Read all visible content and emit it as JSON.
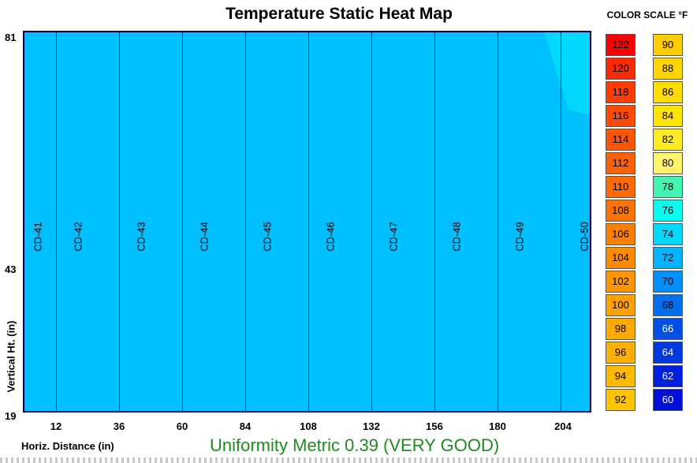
{
  "title": "Temperature Static Heat Map",
  "color_scale": {
    "title": "COLOR SCALE °F",
    "left_column": [
      {
        "value": "122",
        "color": "#FF0000",
        "text_color": "#000000"
      },
      {
        "value": "120",
        "color": "#FF2A00",
        "text_color": "#000000"
      },
      {
        "value": "118",
        "color": "#FF3C00",
        "text_color": "#000000"
      },
      {
        "value": "116",
        "color": "#FF4A00",
        "text_color": "#000000"
      },
      {
        "value": "114",
        "color": "#FF5500",
        "text_color": "#000000"
      },
      {
        "value": "112",
        "color": "#FF6000",
        "text_color": "#000000"
      },
      {
        "value": "110",
        "color": "#FF6A00",
        "text_color": "#000000"
      },
      {
        "value": "108",
        "color": "#FF7400",
        "text_color": "#000000"
      },
      {
        "value": "106",
        "color": "#FF7F00",
        "text_color": "#000000"
      },
      {
        "value": "104",
        "color": "#FF8A00",
        "text_color": "#000000"
      },
      {
        "value": "102",
        "color": "#FF9500",
        "text_color": "#000000"
      },
      {
        "value": "100",
        "color": "#FF9F00",
        "text_color": "#000000"
      },
      {
        "value": "98",
        "color": "#FFA800",
        "text_color": "#000000"
      },
      {
        "value": "96",
        "color": "#FFB000",
        "text_color": "#000000"
      },
      {
        "value": "94",
        "color": "#FFBA00",
        "text_color": "#000000"
      },
      {
        "value": "92",
        "color": "#FFC400",
        "text_color": "#000000"
      }
    ],
    "right_column": [
      {
        "value": "90",
        "color": "#FFCC00",
        "text_color": "#000000"
      },
      {
        "value": "88",
        "color": "#FFD400",
        "text_color": "#000000"
      },
      {
        "value": "86",
        "color": "#FFDC00",
        "text_color": "#000000"
      },
      {
        "value": "84",
        "color": "#FFE400",
        "text_color": "#000000"
      },
      {
        "value": "82",
        "color": "#FFEC20",
        "text_color": "#000000"
      },
      {
        "value": "80",
        "color": "#FFF36A",
        "text_color": "#000000"
      },
      {
        "value": "78",
        "color": "#40F5B0",
        "text_color": "#000000"
      },
      {
        "value": "76",
        "color": "#00FFEE",
        "text_color": "#000000"
      },
      {
        "value": "74",
        "color": "#00D8FF",
        "text_color": "#000000"
      },
      {
        "value": "72",
        "color": "#00B4FF",
        "text_color": "#000000"
      },
      {
        "value": "70",
        "color": "#0090FF",
        "text_color": "#000000"
      },
      {
        "value": "68",
        "color": "#0070F0",
        "text_color": "#000000"
      },
      {
        "value": "66",
        "color": "#0050E8",
        "text_color": "#FFFFFF"
      },
      {
        "value": "64",
        "color": "#0038E0",
        "text_color": "#FFFFFF"
      },
      {
        "value": "62",
        "color": "#0020E0",
        "text_color": "#FFFFFF"
      },
      {
        "value": "60",
        "color": "#0010D8",
        "text_color": "#FFFFFF"
      }
    ]
  },
  "heat_map": {
    "background_color": "#00BFFF",
    "warm_corner_color": "#00D8FF",
    "columns": [
      "CD-41",
      "CD-42",
      "CD-43",
      "CD-44",
      "CD-45",
      "CD-46",
      "CD-47",
      "CD-48",
      "CD-49",
      "CD-50"
    ],
    "y_axis": {
      "label": "Vertical Ht. (in)",
      "ticks": [
        "81",
        "43",
        "19"
      ]
    },
    "x_axis": {
      "label": "Horiz. Distance (in)",
      "ticks": [
        "12",
        "36",
        "60",
        "84",
        "108",
        "132",
        "156",
        "180",
        "204"
      ]
    }
  },
  "uniformity_metric": "Uniformity Metric 0.39 (VERY GOOD)"
}
